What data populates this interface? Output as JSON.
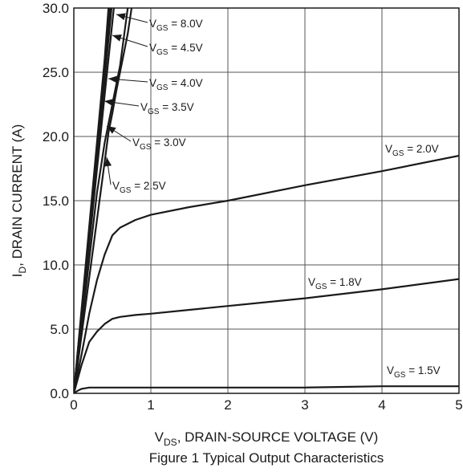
{
  "chart_data": {
    "type": "line",
    "caption": "Figure 1  Typical Output Characteristics",
    "xlabel": {
      "main": "V",
      "sub": "DS",
      "rest": ", DRAIN-SOURCE VOLTAGE (V)"
    },
    "ylabel": {
      "main": "I",
      "sub": "D",
      "rest": ", DRAIN CURRENT (A)"
    },
    "xlim": [
      0,
      5
    ],
    "ylim": [
      0,
      30
    ],
    "xticks": [
      "0",
      "1",
      "2",
      "3",
      "4",
      "5"
    ],
    "yticks": [
      "0.0",
      "5.0",
      "10.0",
      "15.0",
      "20.0",
      "25.0",
      "30.0"
    ],
    "grid": true,
    "series": [
      {
        "name": "8.0V",
        "label": {
          "main": "V",
          "sub": "GS",
          "rest": " = 8.0V"
        },
        "x": [
          0,
          0.1,
          0.2,
          0.3,
          0.4,
          0.45
        ],
        "y": [
          0,
          6.5,
          13,
          19.5,
          26,
          30
        ]
      },
      {
        "name": "4.5V",
        "label": {
          "main": "V",
          "sub": "GS",
          "rest": " = 4.5V"
        },
        "x": [
          0,
          0.1,
          0.2,
          0.3,
          0.4,
          0.47
        ],
        "y": [
          0,
          6.3,
          12.6,
          18.9,
          25.2,
          30
        ]
      },
      {
        "name": "4.0V",
        "label": {
          "main": "V",
          "sub": "GS",
          "rest": " = 4.0V"
        },
        "x": [
          0,
          0.1,
          0.2,
          0.3,
          0.4,
          0.49
        ],
        "y": [
          0,
          6.1,
          12.2,
          18.3,
          24.4,
          30
        ]
      },
      {
        "name": "3.5V",
        "label": {
          "main": "V",
          "sub": "GS",
          "rest": " = 3.5V"
        },
        "x": [
          0,
          0.1,
          0.2,
          0.3,
          0.4,
          0.52
        ],
        "y": [
          0,
          5.8,
          11.6,
          17.4,
          23.2,
          30
        ]
      },
      {
        "name": "3.0V",
        "label": {
          "main": "V",
          "sub": "GS",
          "rest": " = 3.0V"
        },
        "x": [
          0,
          0.1,
          0.2,
          0.3,
          0.4,
          0.45,
          0.5,
          0.6,
          0.7
        ],
        "y": [
          0,
          5.2,
          10.4,
          15.6,
          19.5,
          21.0,
          22.5,
          25.5,
          30
        ]
      },
      {
        "name": "2.5V",
        "label": {
          "main": "V",
          "sub": "GS",
          "rest": " = 2.5V"
        },
        "x": [
          0,
          0.1,
          0.2,
          0.3,
          0.4,
          0.45,
          0.5,
          0.55,
          0.6,
          0.7,
          0.75
        ],
        "y": [
          0,
          4.5,
          9.0,
          13.5,
          18.0,
          20.3,
          21.8,
          23.5,
          25.0,
          28.0,
          30
        ]
      },
      {
        "name": "2.0V",
        "label": {
          "main": "V",
          "sub": "GS",
          "rest": " = 2.0V"
        },
        "x": [
          0,
          0.1,
          0.2,
          0.3,
          0.4,
          0.5,
          0.6,
          0.8,
          1.0,
          1.5,
          2.0,
          3.0,
          4.0,
          5.0
        ],
        "y": [
          0,
          3.0,
          6.2,
          8.8,
          10.8,
          12.3,
          12.9,
          13.5,
          13.9,
          14.5,
          15.0,
          16.2,
          17.3,
          18.5
        ]
      },
      {
        "name": "1.8V",
        "label": {
          "main": "V",
          "sub": "GS",
          "rest": " = 1.8V"
        },
        "x": [
          0,
          0.1,
          0.2,
          0.3,
          0.4,
          0.5,
          0.6,
          0.8,
          1.0,
          1.5,
          2.0,
          3.0,
          4.0,
          5.0
        ],
        "y": [
          0,
          2.2,
          4.0,
          4.8,
          5.4,
          5.8,
          5.95,
          6.1,
          6.2,
          6.5,
          6.8,
          7.4,
          8.1,
          8.9
        ]
      },
      {
        "name": "1.5V",
        "label": {
          "main": "V",
          "sub": "GS",
          "rest": " = 1.5V"
        },
        "x": [
          0,
          0.05,
          0.1,
          0.2,
          0.5,
          1.0,
          2.0,
          3.0,
          3.5,
          4.0,
          5.0
        ],
        "y": [
          0,
          0.2,
          0.35,
          0.45,
          0.45,
          0.45,
          0.45,
          0.45,
          0.5,
          0.55,
          0.55
        ]
      }
    ]
  }
}
